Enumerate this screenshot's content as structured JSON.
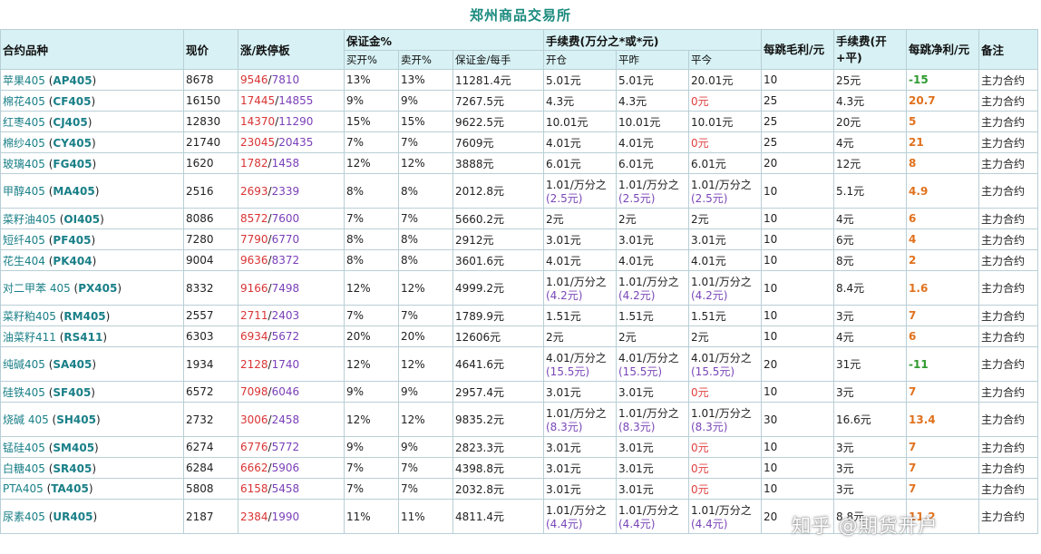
{
  "title": "郑州商品交易所",
  "headers": {
    "contract": "合约品种",
    "price": "现价",
    "limit": "涨/跌停板",
    "margin_group": "保证金%",
    "buy_open": "买开%",
    "sell_open": "卖开%",
    "margin_per_lot": "保证金/每手",
    "fee_group": "手续费(万分之*或*元)",
    "open": "开仓",
    "close_old": "平昨",
    "close_today": "平今",
    "tick_gross": "每跳毛利/元",
    "fee_total": "手续费(开+平)",
    "tick_net": "每跳净利/元",
    "note": "备注"
  },
  "rows": [
    {
      "name": "苹果405",
      "code": "AP405",
      "price": "8678",
      "up": "9546",
      "down": "7810",
      "buy": "13%",
      "sell": "13%",
      "margin": "11281.4元",
      "open": "5.01元",
      "open_sub": "",
      "close": "5.01元",
      "close_sub": "",
      "today": "20.01元",
      "today_sub": "",
      "today_zero": false,
      "gross": "10",
      "fee": "25元",
      "net": "-15",
      "net_neg": true,
      "note": "主力合约"
    },
    {
      "name": "棉花405",
      "code": "CF405",
      "price": "16150",
      "up": "17445",
      "down": "14855",
      "buy": "9%",
      "sell": "9%",
      "margin": "7267.5元",
      "open": "4.3元",
      "open_sub": "",
      "close": "4.3元",
      "close_sub": "",
      "today": "0元",
      "today_sub": "",
      "today_zero": true,
      "gross": "25",
      "fee": "4.3元",
      "net": "20.7",
      "net_neg": false,
      "note": "主力合约"
    },
    {
      "name": "红枣405",
      "code": "CJ405",
      "price": "12830",
      "up": "14370",
      "down": "11290",
      "buy": "15%",
      "sell": "15%",
      "margin": "9622.5元",
      "open": "10.01元",
      "open_sub": "",
      "close": "10.01元",
      "close_sub": "",
      "today": "10.01元",
      "today_sub": "",
      "today_zero": false,
      "gross": "25",
      "fee": "20元",
      "net": "5",
      "net_neg": false,
      "note": "主力合约"
    },
    {
      "name": "棉纱405",
      "code": "CY405",
      "price": "21740",
      "up": "23045",
      "down": "20435",
      "buy": "7%",
      "sell": "7%",
      "margin": "7609元",
      "open": "4.01元",
      "open_sub": "",
      "close": "4.01元",
      "close_sub": "",
      "today": "0元",
      "today_sub": "",
      "today_zero": true,
      "gross": "25",
      "fee": "4元",
      "net": "21",
      "net_neg": false,
      "note": "主力合约"
    },
    {
      "name": "玻璃405",
      "code": "FG405",
      "price": "1620",
      "up": "1782",
      "down": "1458",
      "buy": "12%",
      "sell": "12%",
      "margin": "3888元",
      "open": "6.01元",
      "open_sub": "",
      "close": "6.01元",
      "close_sub": "",
      "today": "6.01元",
      "today_sub": "",
      "today_zero": false,
      "gross": "20",
      "fee": "12元",
      "net": "8",
      "net_neg": false,
      "note": "主力合约"
    },
    {
      "name": "甲醇405",
      "code": "MA405",
      "price": "2516",
      "up": "2693",
      "down": "2339",
      "buy": "8%",
      "sell": "8%",
      "margin": "2012.8元",
      "open": "1.01/万分之",
      "open_sub": "(2.5元)",
      "close": "1.01/万分之",
      "close_sub": "(2.5元)",
      "today": "1.01/万分之",
      "today_sub": "(2.5元)",
      "today_zero": false,
      "gross": "10",
      "fee": "5.1元",
      "net": "4.9",
      "net_neg": false,
      "note": "主力合约"
    },
    {
      "name": "菜籽油405",
      "code": "OI405",
      "price": "8086",
      "up": "8572",
      "down": "7600",
      "buy": "7%",
      "sell": "7%",
      "margin": "5660.2元",
      "open": "2元",
      "open_sub": "",
      "close": "2元",
      "close_sub": "",
      "today": "2元",
      "today_sub": "",
      "today_zero": false,
      "gross": "10",
      "fee": "4元",
      "net": "6",
      "net_neg": false,
      "note": "主力合约"
    },
    {
      "name": "短纤405",
      "code": "PF405",
      "price": "7280",
      "up": "7790",
      "down": "6770",
      "buy": "8%",
      "sell": "8%",
      "margin": "2912元",
      "open": "3.01元",
      "open_sub": "",
      "close": "3.01元",
      "close_sub": "",
      "today": "3.01元",
      "today_sub": "",
      "today_zero": false,
      "gross": "10",
      "fee": "6元",
      "net": "4",
      "net_neg": false,
      "note": "主力合约"
    },
    {
      "name": "花生404",
      "code": "PK404",
      "price": "9004",
      "up": "9636",
      "down": "8372",
      "buy": "8%",
      "sell": "8%",
      "margin": "3601.6元",
      "open": "4.01元",
      "open_sub": "",
      "close": "4.01元",
      "close_sub": "",
      "today": "4.01元",
      "today_sub": "",
      "today_zero": false,
      "gross": "10",
      "fee": "8元",
      "net": "2",
      "net_neg": false,
      "note": "主力合约"
    },
    {
      "name": "对二甲苯 405",
      "code": "PX405",
      "price": "8332",
      "up": "9166",
      "down": "7498",
      "buy": "12%",
      "sell": "12%",
      "margin": "4999.2元",
      "open": "1.01/万分之",
      "open_sub": "(4.2元)",
      "close": "1.01/万分之",
      "close_sub": "(4.2元)",
      "today": "1.01/万分之",
      "today_sub": "(4.2元)",
      "today_zero": false,
      "gross": "10",
      "fee": "8.4元",
      "net": "1.6",
      "net_neg": false,
      "note": "主力合约"
    },
    {
      "name": "菜籽粕405",
      "code": "RM405",
      "price": "2557",
      "up": "2711",
      "down": "2403",
      "buy": "7%",
      "sell": "7%",
      "margin": "1789.9元",
      "open": "1.51元",
      "open_sub": "",
      "close": "1.51元",
      "close_sub": "",
      "today": "1.51元",
      "today_sub": "",
      "today_zero": false,
      "gross": "10",
      "fee": "3元",
      "net": "7",
      "net_neg": false,
      "note": "主力合约"
    },
    {
      "name": "油菜籽411",
      "code": "RS411",
      "price": "6303",
      "up": "6934",
      "down": "5672",
      "buy": "20%",
      "sell": "20%",
      "margin": "12606元",
      "open": "2元",
      "open_sub": "",
      "close": "2元",
      "close_sub": "",
      "today": "2元",
      "today_sub": "",
      "today_zero": false,
      "gross": "10",
      "fee": "4元",
      "net": "6",
      "net_neg": false,
      "note": "主力合约"
    },
    {
      "name": "纯碱405",
      "code": "SA405",
      "price": "1934",
      "up": "2128",
      "down": "1740",
      "buy": "12%",
      "sell": "12%",
      "margin": "4641.6元",
      "open": "4.01/万分之",
      "open_sub": "(15.5元)",
      "close": "4.01/万分之",
      "close_sub": "(15.5元)",
      "today": "4.01/万分之",
      "today_sub": "(15.5元)",
      "today_zero": false,
      "gross": "20",
      "fee": "31元",
      "net": "-11",
      "net_neg": true,
      "note": "主力合约"
    },
    {
      "name": "硅铁405",
      "code": "SF405",
      "price": "6572",
      "up": "7098",
      "down": "6046",
      "buy": "9%",
      "sell": "9%",
      "margin": "2957.4元",
      "open": "3.01元",
      "open_sub": "",
      "close": "3.01元",
      "close_sub": "",
      "today": "0元",
      "today_sub": "",
      "today_zero": true,
      "gross": "10",
      "fee": "3元",
      "net": "7",
      "net_neg": false,
      "note": "主力合约"
    },
    {
      "name": "烧碱 405",
      "code": "SH405",
      "price": "2732",
      "up": "3006",
      "down": "2458",
      "buy": "12%",
      "sell": "12%",
      "margin": "9835.2元",
      "open": "1.01/万分之",
      "open_sub": "(8.3元)",
      "close": "1.01/万分之",
      "close_sub": "(8.3元)",
      "today": "1.01/万分之",
      "today_sub": "(8.3元)",
      "today_zero": false,
      "gross": "30",
      "fee": "16.6元",
      "net": "13.4",
      "net_neg": false,
      "note": "主力合约"
    },
    {
      "name": "锰硅405",
      "code": "SM405",
      "price": "6274",
      "up": "6776",
      "down": "5772",
      "buy": "9%",
      "sell": "9%",
      "margin": "2823.3元",
      "open": "3.01元",
      "open_sub": "",
      "close": "3.01元",
      "close_sub": "",
      "today": "0元",
      "today_sub": "",
      "today_zero": true,
      "gross": "10",
      "fee": "3元",
      "net": "7",
      "net_neg": false,
      "note": "主力合约"
    },
    {
      "name": "白糖405",
      "code": "SR405",
      "price": "6284",
      "up": "6662",
      "down": "5906",
      "buy": "7%",
      "sell": "7%",
      "margin": "4398.8元",
      "open": "3.01元",
      "open_sub": "",
      "close": "3.01元",
      "close_sub": "",
      "today": "0元",
      "today_sub": "",
      "today_zero": true,
      "gross": "10",
      "fee": "3元",
      "net": "7",
      "net_neg": false,
      "note": "主力合约"
    },
    {
      "name": "PTA405",
      "code": "TA405",
      "price": "5808",
      "up": "6158",
      "down": "5458",
      "buy": "7%",
      "sell": "7%",
      "margin": "2032.8元",
      "open": "3.01元",
      "open_sub": "",
      "close": "3.01元",
      "close_sub": "",
      "today": "0元",
      "today_sub": "",
      "today_zero": true,
      "gross": "10",
      "fee": "3元",
      "net": "7",
      "net_neg": false,
      "note": "主力合约"
    },
    {
      "name": "尿素405",
      "code": "UR405",
      "price": "2187",
      "up": "2384",
      "down": "1990",
      "buy": "11%",
      "sell": "11%",
      "margin": "4811.4元",
      "open": "1.01/万分之",
      "open_sub": "(4.4元)",
      "close": "1.01/万分之",
      "close_sub": "(4.4元)",
      "today": "1.01/万分之",
      "today_sub": "(4.4元)",
      "today_zero": false,
      "gross": "20",
      "fee": "8.8元",
      "net": "11.2",
      "net_neg": false,
      "note": "主力合约"
    }
  ],
  "watermark": "知乎 @期货开户"
}
